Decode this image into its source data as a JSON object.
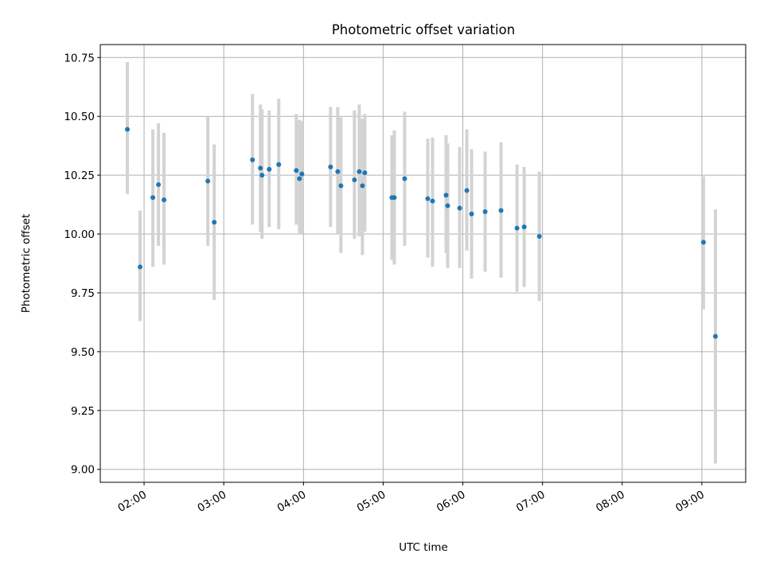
{
  "chart_data": {
    "type": "scatter",
    "title": "Photometric offset variation",
    "xlabel": "UTC time",
    "ylabel": "Photometric offset",
    "x_unit": "hours UTC",
    "xlim": [
      1.45,
      9.55
    ],
    "ylim": [
      8.945,
      10.805
    ],
    "grid": true,
    "x_ticks": [
      {
        "value": 2,
        "label": "02:00"
      },
      {
        "value": 3,
        "label": "03:00"
      },
      {
        "value": 4,
        "label": "04:00"
      },
      {
        "value": 5,
        "label": "05:00"
      },
      {
        "value": 6,
        "label": "06:00"
      },
      {
        "value": 7,
        "label": "07:00"
      },
      {
        "value": 8,
        "label": "08:00"
      },
      {
        "value": 9,
        "label": "09:00"
      }
    ],
    "y_ticks": [
      {
        "value": 9.0,
        "label": "9.00"
      },
      {
        "value": 9.25,
        "label": "9.25"
      },
      {
        "value": 9.5,
        "label": "9.50"
      },
      {
        "value": 9.75,
        "label": "9.75"
      },
      {
        "value": 10.0,
        "label": "10.00"
      },
      {
        "value": 10.25,
        "label": "10.25"
      },
      {
        "value": 10.5,
        "label": "10.50"
      },
      {
        "value": 10.75,
        "label": "10.75"
      }
    ],
    "colors": {
      "points": "#1f77b4",
      "errorbars": "#d3d3d3",
      "grid": "#b0b0b0"
    },
    "series": [
      {
        "points": [
          {
            "x": 1.79,
            "y": 10.445,
            "err_low": 10.17,
            "err_high": 10.73
          },
          {
            "x": 1.95,
            "y": 9.86,
            "err_low": 9.63,
            "err_high": 10.1
          },
          {
            "x": 2.11,
            "y": 10.155,
            "err_low": 9.86,
            "err_high": 10.445
          },
          {
            "x": 2.18,
            "y": 10.21,
            "err_low": 9.95,
            "err_high": 10.47
          },
          {
            "x": 2.25,
            "y": 10.145,
            "err_low": 9.87,
            "err_high": 10.43
          },
          {
            "x": 2.8,
            "y": 10.225,
            "err_low": 9.95,
            "err_high": 10.5
          },
          {
            "x": 2.88,
            "y": 10.05,
            "err_low": 9.72,
            "err_high": 10.38
          },
          {
            "x": 3.36,
            "y": 10.315,
            "err_low": 10.04,
            "err_high": 10.595
          },
          {
            "x": 3.46,
            "y": 10.28,
            "err_low": 10.01,
            "err_high": 10.55
          },
          {
            "x": 3.48,
            "y": 10.25,
            "err_low": 9.98,
            "err_high": 10.53
          },
          {
            "x": 3.57,
            "y": 10.275,
            "err_low": 10.03,
            "err_high": 10.525
          },
          {
            "x": 3.69,
            "y": 10.295,
            "err_low": 10.02,
            "err_high": 10.575
          },
          {
            "x": 3.91,
            "y": 10.27,
            "err_low": 10.04,
            "err_high": 10.51
          },
          {
            "x": 3.95,
            "y": 10.235,
            "err_low": 10.0,
            "err_high": 10.485
          },
          {
            "x": 3.98,
            "y": 10.255,
            "err_low": 10.0,
            "err_high": 10.48
          },
          {
            "x": 4.34,
            "y": 10.285,
            "err_low": 10.03,
            "err_high": 10.54
          },
          {
            "x": 4.43,
            "y": 10.265,
            "err_low": 10.0,
            "err_high": 10.54
          },
          {
            "x": 4.47,
            "y": 10.205,
            "err_low": 9.92,
            "err_high": 10.495
          },
          {
            "x": 4.64,
            "y": 10.23,
            "err_low": 9.98,
            "err_high": 10.525
          },
          {
            "x": 4.7,
            "y": 10.265,
            "err_low": 9.99,
            "err_high": 10.55
          },
          {
            "x": 4.74,
            "y": 10.205,
            "err_low": 9.91,
            "err_high": 10.49
          },
          {
            "x": 4.77,
            "y": 10.26,
            "err_low": 10.01,
            "err_high": 10.51
          },
          {
            "x": 5.11,
            "y": 10.155,
            "err_low": 9.89,
            "err_high": 10.42
          },
          {
            "x": 5.14,
            "y": 10.155,
            "err_low": 9.87,
            "err_high": 10.44
          },
          {
            "x": 5.27,
            "y": 10.235,
            "err_low": 9.95,
            "err_high": 10.52
          },
          {
            "x": 5.56,
            "y": 10.15,
            "err_low": 9.9,
            "err_high": 10.405
          },
          {
            "x": 5.62,
            "y": 10.14,
            "err_low": 9.86,
            "err_high": 10.41
          },
          {
            "x": 5.79,
            "y": 10.165,
            "err_low": 9.92,
            "err_high": 10.42
          },
          {
            "x": 5.81,
            "y": 10.12,
            "err_low": 9.855,
            "err_high": 10.385
          },
          {
            "x": 5.96,
            "y": 10.11,
            "err_low": 9.855,
            "err_high": 10.37
          },
          {
            "x": 6.05,
            "y": 10.185,
            "err_low": 9.93,
            "err_high": 10.445
          },
          {
            "x": 6.11,
            "y": 10.085,
            "err_low": 9.81,
            "err_high": 10.36
          },
          {
            "x": 6.28,
            "y": 10.095,
            "err_low": 9.84,
            "err_high": 10.35
          },
          {
            "x": 6.48,
            "y": 10.1,
            "err_low": 9.815,
            "err_high": 10.39
          },
          {
            "x": 6.68,
            "y": 10.025,
            "err_low": 9.755,
            "err_high": 10.295
          },
          {
            "x": 6.77,
            "y": 10.03,
            "err_low": 9.775,
            "err_high": 10.285
          },
          {
            "x": 6.96,
            "y": 9.99,
            "err_low": 9.715,
            "err_high": 10.265
          },
          {
            "x": 9.02,
            "y": 9.965,
            "err_low": 9.68,
            "err_high": 10.245
          },
          {
            "x": 9.17,
            "y": 9.565,
            "err_low": 9.025,
            "err_high": 10.105
          }
        ]
      }
    ]
  }
}
